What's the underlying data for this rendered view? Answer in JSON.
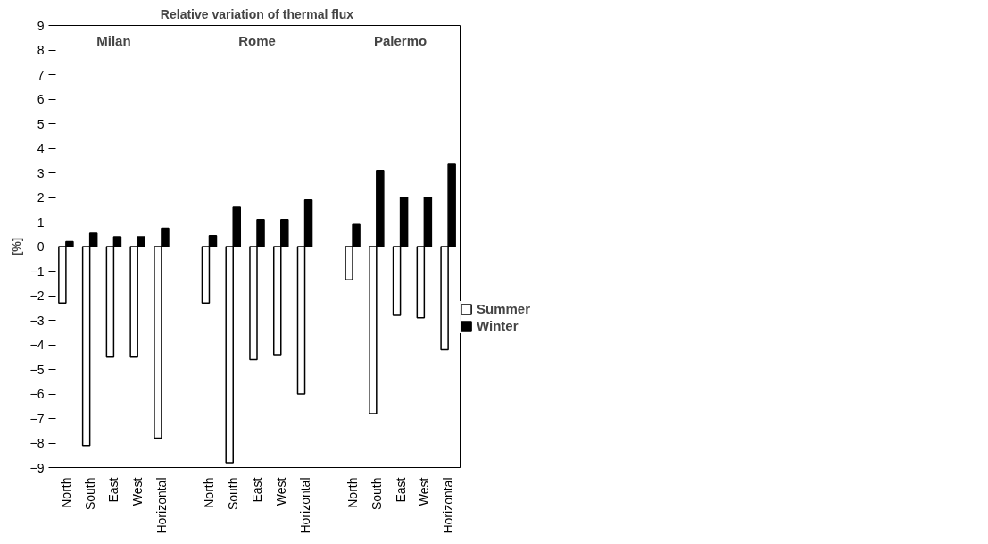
{
  "chart_data": {
    "type": "bar",
    "title": "Relative variation of thermal flux",
    "ylabel": "[%]",
    "categories": [
      "North",
      "South",
      "East",
      "West",
      "Horizontal",
      null,
      "North",
      "South",
      "East",
      "West",
      "Horizontal",
      null,
      "North",
      "South",
      "East",
      "West",
      "Horizontal"
    ],
    "series": [
      {
        "name": "Summer",
        "color": "#ffffff",
        "values": [
          -2.3,
          -8.1,
          -4.5,
          -4.5,
          -7.8,
          null,
          -2.3,
          -8.8,
          -4.6,
          -4.4,
          -6.0,
          null,
          -1.35,
          -6.8,
          -2.8,
          -2.9,
          -4.2
        ]
      },
      {
        "name": "Winter",
        "color": "#000000",
        "values": [
          0.2,
          0.55,
          0.4,
          0.4,
          0.75,
          null,
          0.45,
          1.6,
          1.1,
          1.1,
          1.9,
          null,
          0.9,
          3.1,
          2.0,
          2.0,
          3.35
        ]
      }
    ],
    "annotations": [
      "Milan",
      "Rome",
      "Palermo"
    ],
    "ylim": [
      -9,
      9
    ],
    "yticks": [
      -9,
      -8,
      -7,
      -6,
      -5,
      -4,
      -3,
      -2,
      -1,
      0,
      1,
      2,
      3,
      4,
      5,
      6,
      7,
      8,
      9
    ],
    "grid": false,
    "legend": "right"
  }
}
